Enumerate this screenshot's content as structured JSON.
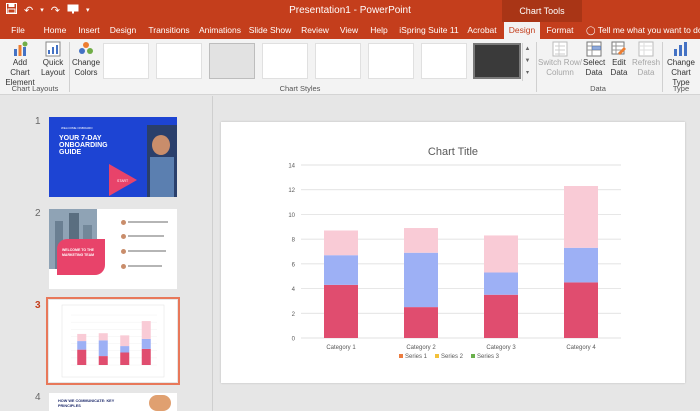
{
  "window": {
    "title": "Presentation1  -  PowerPoint",
    "context_tab_group": "Chart Tools"
  },
  "qat": {
    "save_icon": "save-icon",
    "undo_icon": "undo-icon",
    "redo_icon": "redo-icon",
    "customize_icon": "customize-icon"
  },
  "tabs": [
    {
      "label": "File"
    },
    {
      "label": "Home"
    },
    {
      "label": "Insert"
    },
    {
      "label": "Design"
    },
    {
      "label": "Transitions"
    },
    {
      "label": "Animations"
    },
    {
      "label": "Slide Show"
    },
    {
      "label": "Review"
    },
    {
      "label": "View"
    },
    {
      "label": "Help"
    },
    {
      "label": "iSpring Suite 11"
    },
    {
      "label": "Acrobat"
    },
    {
      "label": "Design"
    },
    {
      "label": "Format"
    }
  ],
  "tell_me": "Tell me what you want to do",
  "ribbon": {
    "add_chart_element": "Add Chart Element",
    "quick_layout": "Quick Layout",
    "chart_layouts": "Chart Layouts",
    "change_colors": "Change Colors",
    "chart_styles": "Chart Styles",
    "switch_row_column": "Switch Row/ Column",
    "select_data": "Select Data",
    "edit_data": "Edit Data",
    "refresh_data": "Refresh Data",
    "data_group": "Data",
    "change_chart_type": "Change Chart Type",
    "type_group": "Type"
  },
  "slides": [
    {
      "number": "1",
      "title": "YOUR 7-DAY ONBOARDING GUIDE",
      "badge": "WELCOME ONBOARD",
      "cta": "START"
    },
    {
      "number": "2",
      "title": "WELCOME TO THE MARKETING TEAM"
    },
    {
      "number": "3"
    },
    {
      "number": "4",
      "title": "HOW WE COMMUNICATE: KEY PRINCIPLES"
    }
  ],
  "colors": {
    "accent": "#c43e1c",
    "series1": "#e04d6f",
    "series2": "#9db0f5",
    "series3": "#f9cbd6"
  },
  "chart_data": {
    "type": "bar",
    "stacked": true,
    "title": "Chart Title",
    "categories": [
      "Category 1",
      "Category 2",
      "Category 3",
      "Category 4"
    ],
    "series": [
      {
        "name": "Series 1",
        "values": [
          4.3,
          2.5,
          3.5,
          4.5
        ],
        "color": "#e04d6f",
        "legend_color": "#ec7c3f"
      },
      {
        "name": "Series 2",
        "values": [
          2.4,
          4.4,
          1.8,
          2.8
        ],
        "color": "#9db0f5",
        "legend_color": "#f3c13a"
      },
      {
        "name": "Series 3",
        "values": [
          2.0,
          2.0,
          3.0,
          5.0
        ],
        "color": "#f9cbd6",
        "legend_color": "#6ab04c"
      }
    ],
    "ylim": [
      0,
      14
    ],
    "yticks": [
      "0",
      "2",
      "4",
      "6",
      "8",
      "10",
      "12",
      "14"
    ],
    "grid": true,
    "legend": "bottom"
  }
}
